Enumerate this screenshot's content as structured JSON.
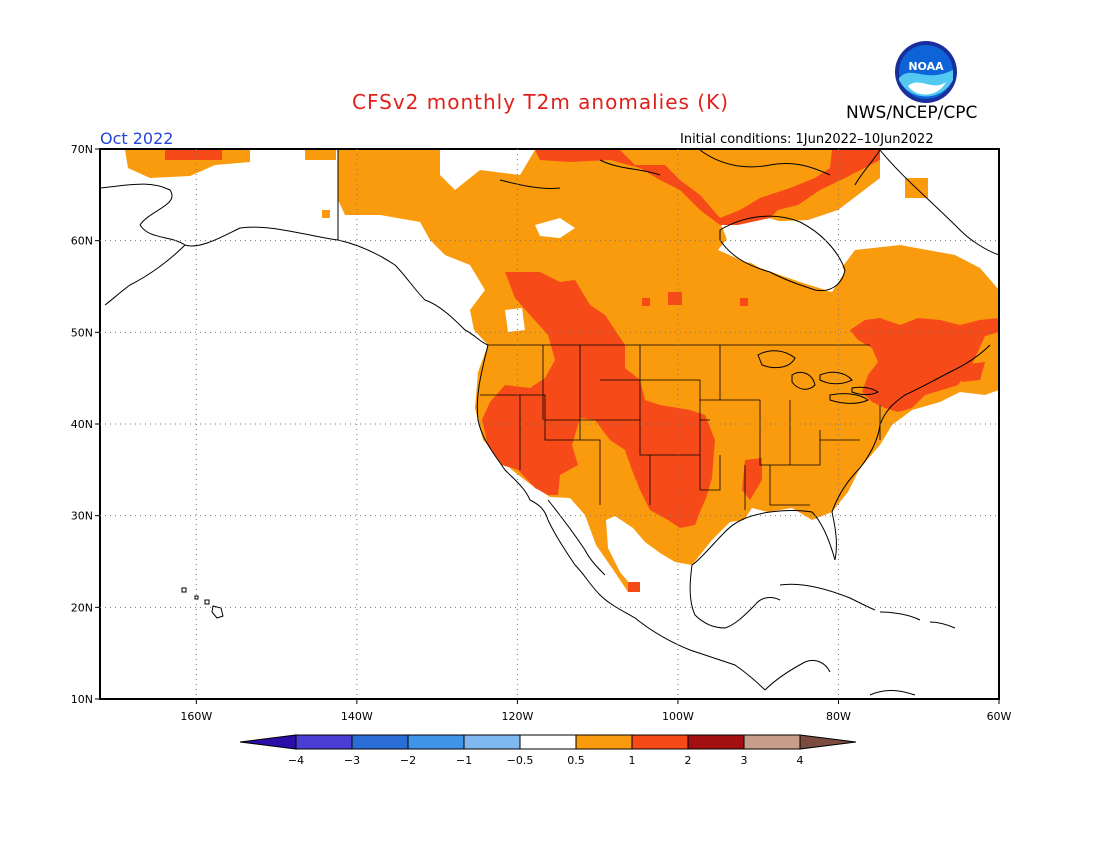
{
  "title": "CFSv2 monthly T2m anomalies (K)",
  "agency": "NWS/NCEP/CPC",
  "period": "Oct 2022",
  "initial_conditions": "Initial conditions: 1Jun2022–10Jun2022",
  "logo_text": "NOAA",
  "map": {
    "lon_range": [
      -172,
      -60
    ],
    "lat_range": [
      10,
      70
    ],
    "lon_ticks": [
      {
        "value": -160,
        "label": "160W"
      },
      {
        "value": -140,
        "label": "140W"
      },
      {
        "value": -120,
        "label": "120W"
      },
      {
        "value": -100,
        "label": "100W"
      },
      {
        "value": -80,
        "label": "80W"
      },
      {
        "value": -60,
        "label": "60W"
      }
    ],
    "lat_ticks": [
      {
        "value": 70,
        "label": "70N"
      },
      {
        "value": 60,
        "label": "60N"
      },
      {
        "value": 50,
        "label": "50N"
      },
      {
        "value": 40,
        "label": "40N"
      },
      {
        "value": 30,
        "label": "30N"
      },
      {
        "value": 20,
        "label": "20N"
      },
      {
        "value": 10,
        "label": "10N"
      }
    ],
    "grid": "dotted"
  },
  "colorbar": {
    "ticks": [
      "-4",
      "-3",
      "-2",
      "-1",
      "-0.5",
      "0.5",
      "1",
      "2",
      "3",
      "4"
    ],
    "colors": [
      "#2b0ea8",
      "#4b3ed6",
      "#2a6dd6",
      "#3f94e8",
      "#7fb9f0",
      "#ffffff",
      "#f99b0c",
      "#f64a19",
      "#a40f12",
      "#c89f8d",
      "#7b4b3f"
    ]
  },
  "colors": {
    "anom_0_5_1": "#f99b0c",
    "anom_1_2": "#f64a19",
    "anom_2_3": "#a40f12",
    "title": "#e0201a",
    "period": "#2244dd"
  }
}
